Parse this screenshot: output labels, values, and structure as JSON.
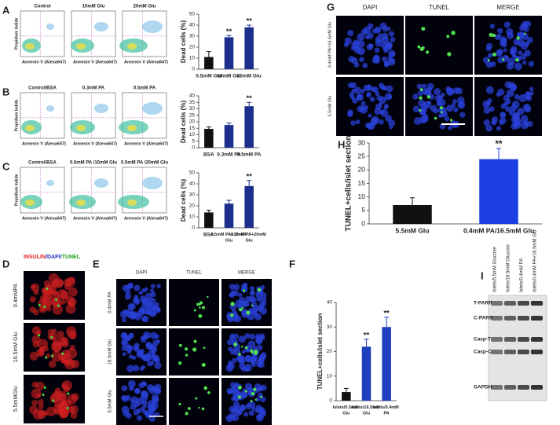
{
  "panels": {
    "A": {
      "letter": "A",
      "plots": [
        "Control",
        "10mM Glu",
        "20mM Glu"
      ],
      "x_label": "Annexin V (Alexa647)",
      "y_label": "Propidium Iodide"
    },
    "B": {
      "letter": "B",
      "plots": [
        "Control/BSA",
        "0.3mM PA",
        "0.5mM PA"
      ],
      "x_label": "Annexin V (Alexa647)",
      "y_label": "Propidium Iodide"
    },
    "C": {
      "letter": "C",
      "plots": [
        "Control/BSA",
        "0.5mM PA /10mM Glu",
        "0.5mM PA /20mM Glu"
      ],
      "x_label": "Annexin V (Alexa647)",
      "y_label": "Propidium Iodide"
    },
    "D": {
      "letter": "D",
      "title_parts": [
        "INSULIN",
        "/DAPI/",
        "TUNEL"
      ],
      "rows": [
        "0.4mMPA",
        "16.5mM Glu",
        "5.5mMGlu"
      ]
    },
    "E": {
      "letter": "E",
      "columns": [
        "DAPI",
        "TUNEL",
        "MERGE"
      ],
      "rows": [
        "0.4mM PA",
        "16.5mM Glu",
        "5.5mM Glu"
      ]
    },
    "G": {
      "letter": "G",
      "columns": [
        "DAPI",
        "TUNEL",
        "MERGE"
      ],
      "rows": [
        "0.4mM PA+16.5mM Glu",
        "5.5mM Glu"
      ]
    },
    "I": {
      "letter": "I",
      "lanes": [
        "Islets/5.5mM Glucose",
        "Islets/16.5mM Glucose",
        "Islets/0.4mM PA",
        "Islets/0.4mM PA+16.5mM Glu"
      ],
      "bands": [
        "T-PARP",
        "C-PARP",
        "Casp-T",
        "Casp-C",
        "GAPDH"
      ]
    }
  },
  "chart_data": [
    {
      "type": "bar",
      "ylabel": "Dead cells (%)",
      "categories": [
        "5.5mM Glu",
        "10mM Glu",
        "20mM Glu"
      ],
      "values": [
        11,
        29,
        38
      ],
      "errors": [
        5,
        1.5,
        2
      ],
      "colors": [
        "#111111",
        "#1c2f8c",
        "#1c2f8c"
      ],
      "annotations": [
        null,
        "**",
        "**"
      ],
      "ylim": [
        0,
        50
      ],
      "yticks": [
        0,
        10,
        20,
        30,
        40,
        50
      ]
    },
    {
      "type": "bar",
      "ylabel": "Dead cells (%)",
      "categories": [
        "BSA",
        "0.3mM PA",
        "0.5mM PA"
      ],
      "values": [
        14.5,
        17.5,
        32
      ],
      "errors": [
        1.5,
        1.5,
        3
      ],
      "colors": [
        "#111111",
        "#1c2f8c",
        "#1c2f8c"
      ],
      "annotations": [
        null,
        null,
        "**"
      ],
      "ylim": [
        0,
        40
      ],
      "yticks": [
        0,
        5,
        10,
        15,
        20,
        25,
        30,
        35,
        40
      ]
    },
    {
      "type": "bar",
      "ylabel": "Dead cells (%)",
      "categories": [
        "BSA",
        "0.5mM PA+10mM Glu",
        "0.5mM PA+20mM Glu"
      ],
      "values": [
        14,
        22,
        38
      ],
      "errors": [
        2,
        3,
        5
      ],
      "colors": [
        "#111111",
        "#1c2f8c",
        "#1c2f8c"
      ],
      "annotations": [
        null,
        null,
        "**"
      ],
      "ylim": [
        0,
        50
      ],
      "yticks": [
        0,
        10,
        20,
        30,
        40,
        50
      ]
    },
    {
      "type": "bar",
      "letter": "F",
      "ylabel": "TUNEL+cells/islet section",
      "categories": [
        "Islets/5.5mM Glu",
        "Islets/16.5mM Glu",
        "Islets/0.4mM PA"
      ],
      "values": [
        3.5,
        22,
        30
      ],
      "errors": [
        1.5,
        3,
        4
      ],
      "colors": [
        "#111111",
        "#1f3fbf",
        "#1f3fbf"
      ],
      "annotations": [
        null,
        "**",
        "**"
      ],
      "ylim": [
        0,
        40
      ],
      "yticks": [
        0,
        10,
        20,
        30,
        40
      ]
    },
    {
      "type": "bar",
      "letter": "H",
      "ylabel": "TUNEL+cells/islet section",
      "categories": [
        "5.5mM Glu",
        "0.4mM PA/16.5mM Glu"
      ],
      "values": [
        7,
        24
      ],
      "errors": [
        2.7,
        4
      ],
      "colors": [
        "#111111",
        "#1a3ee0"
      ],
      "annotations": [
        null,
        "**"
      ],
      "ylim": [
        0,
        30
      ],
      "yticks": [
        0,
        5,
        10,
        15,
        20,
        25,
        30
      ]
    }
  ]
}
